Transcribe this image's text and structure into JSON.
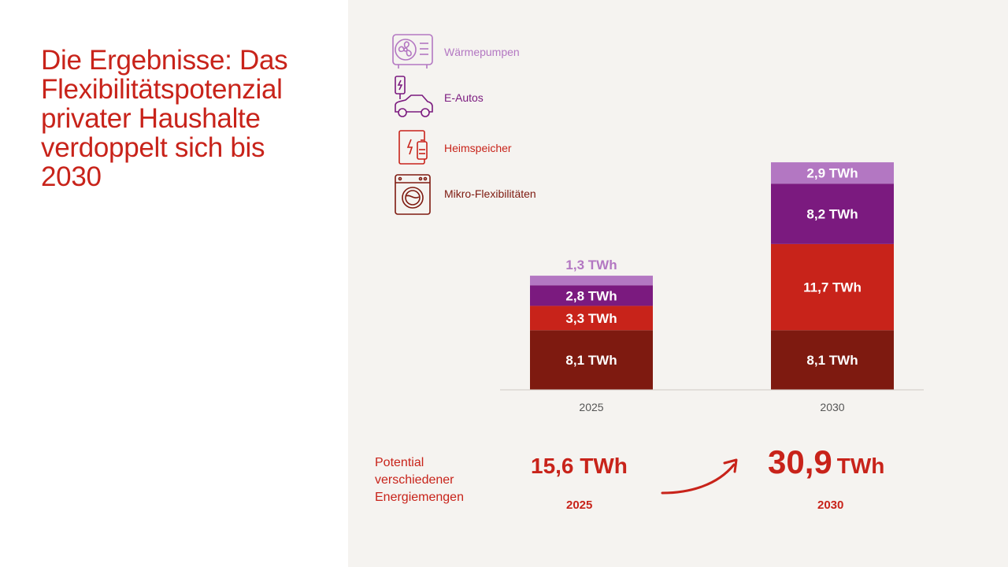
{
  "title_lines": [
    "Die Ergebnisse: Das",
    "Flexibilitätspotenzial",
    "privater Haushalte",
    "verdoppelt sich bis",
    "2030"
  ],
  "legend": [
    {
      "label": "Wärmepumpen",
      "color": "#b377c2",
      "icon": "heat-pump-icon"
    },
    {
      "label": "E-Autos",
      "color": "#7b1a7f",
      "icon": "electric-car-icon"
    },
    {
      "label": "Heimspeicher",
      "color": "#c8231a",
      "icon": "home-battery-icon"
    },
    {
      "label": "Mikro-Flexibilitäten",
      "color": "#7e1a10",
      "icon": "washing-machine-icon"
    }
  ],
  "chart_data": {
    "type": "bar",
    "stacked": true,
    "categories": [
      "2025",
      "2030"
    ],
    "series": [
      {
        "name": "Mikro-Flexibilitäten",
        "values": [
          8.1,
          8.1
        ],
        "labels": [
          "8,1 TWh",
          "8,1 TWh"
        ],
        "color": "#7e1a10"
      },
      {
        "name": "Heimspeicher",
        "values": [
          3.3,
          11.7
        ],
        "labels": [
          "3,3 TWh",
          "11,7 TWh"
        ],
        "color": "#c8231a"
      },
      {
        "name": "E-Autos",
        "values": [
          2.8,
          8.2
        ],
        "labels": [
          "2,8 TWh",
          "8,2 TWh"
        ],
        "color": "#7b1a7f"
      },
      {
        "name": "Wärmepumpen",
        "values": [
          1.3,
          2.9
        ],
        "labels": [
          "1,3 TWh",
          "2,9 TWh"
        ],
        "color": "#b377c2"
      }
    ],
    "title": "",
    "xlabel": "",
    "ylabel": "",
    "grid": false,
    "legend": "top-left"
  },
  "summary": {
    "label_lines": [
      "Potential",
      "verschiedener",
      "Energiemengen"
    ],
    "total_2025": "15,6 TWh",
    "total_2030_value": "30,9",
    "total_2030_unit": "TWh",
    "year_2025": "2025",
    "year_2030": "2030"
  }
}
